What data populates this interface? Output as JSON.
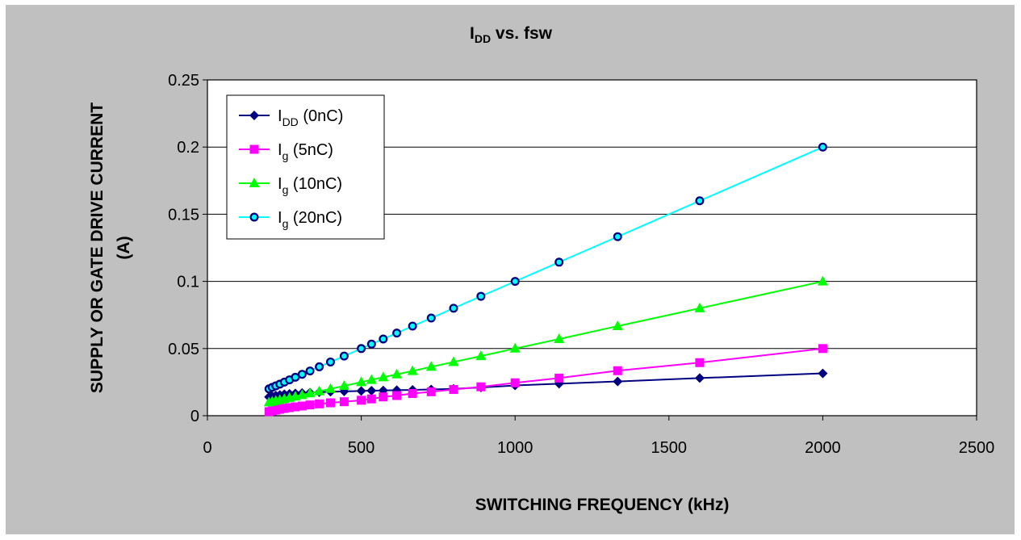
{
  "chart_data": {
    "type": "line",
    "title": "I",
    "title_sub": "DD",
    "title_rest": " vs. fsw",
    "xlabel": "SWITCHING FREQUENCY (kHz)",
    "ylabel": "SUPPLY OR GATE DRIVE CURRENT",
    "ylabel_line2": "(A)",
    "xlim": [
      0,
      2500
    ],
    "ylim": [
      0,
      0.25
    ],
    "x_ticks": [
      "0",
      "500",
      "1000",
      "1500",
      "2000",
      "2500"
    ],
    "y_ticks": [
      "0",
      "0.05",
      "0.1",
      "0.15",
      "0.2",
      "0.25"
    ],
    "grid": "horizontal",
    "legend_position": "top-left",
    "x": [
      200,
      210.5,
      222.2,
      235.3,
      250,
      266.7,
      285.7,
      307.7,
      333.3,
      363.6,
      400,
      444.4,
      500,
      533.3,
      571.4,
      615.4,
      666.7,
      727.3,
      800,
      888.9,
      1000,
      1142.9,
      1333.3,
      1600,
      2000
    ],
    "series": [
      {
        "legend_main": "I",
        "legend_sub": "DD",
        "legend_rest": " (0nC)",
        "color": "#000080",
        "marker": "diamond",
        "values": [
          0.014,
          0.0145,
          0.015,
          0.0155,
          0.016,
          0.0163,
          0.0166,
          0.0169,
          0.0172,
          0.0175,
          0.0178,
          0.0181,
          0.0184,
          0.0186,
          0.0188,
          0.019,
          0.0192,
          0.0195,
          0.02,
          0.021,
          0.0225,
          0.0238,
          0.0255,
          0.028,
          0.0315
        ]
      },
      {
        "legend_main": "I",
        "legend_sub": "g",
        "legend_rest": "  (5nC)",
        "color": "#ff00ff",
        "marker": "square",
        "values": [
          0.003,
          0.0036,
          0.0042,
          0.0048,
          0.0054,
          0.006,
          0.0066,
          0.0072,
          0.008,
          0.0088,
          0.0096,
          0.0104,
          0.0115,
          0.0125,
          0.014,
          0.015,
          0.0165,
          0.0178,
          0.0195,
          0.0215,
          0.0245,
          0.028,
          0.0335,
          0.0395,
          0.05
        ]
      },
      {
        "legend_main": "I",
        "legend_sub": "g",
        "legend_rest": "  (10nC)",
        "color": "#00ff00",
        "marker": "triangle",
        "values": [
          0.01,
          0.0105,
          0.0111,
          0.0118,
          0.0125,
          0.0133,
          0.0143,
          0.0154,
          0.0167,
          0.0182,
          0.02,
          0.0222,
          0.025,
          0.0267,
          0.0286,
          0.0308,
          0.0333,
          0.0364,
          0.04,
          0.0444,
          0.05,
          0.0571,
          0.0667,
          0.08,
          0.1
        ]
      },
      {
        "legend_main": "I",
        "legend_sub": "g",
        "legend_rest": "  (20nC)",
        "color": "#00ffff",
        "marker": "circle",
        "values": [
          0.02,
          0.0211,
          0.0222,
          0.0235,
          0.025,
          0.0267,
          0.0286,
          0.0308,
          0.0333,
          0.0364,
          0.04,
          0.0444,
          0.05,
          0.0533,
          0.0571,
          0.0615,
          0.0667,
          0.0727,
          0.08,
          0.0889,
          0.1,
          0.1143,
          0.1333,
          0.16,
          0.2
        ]
      }
    ]
  }
}
